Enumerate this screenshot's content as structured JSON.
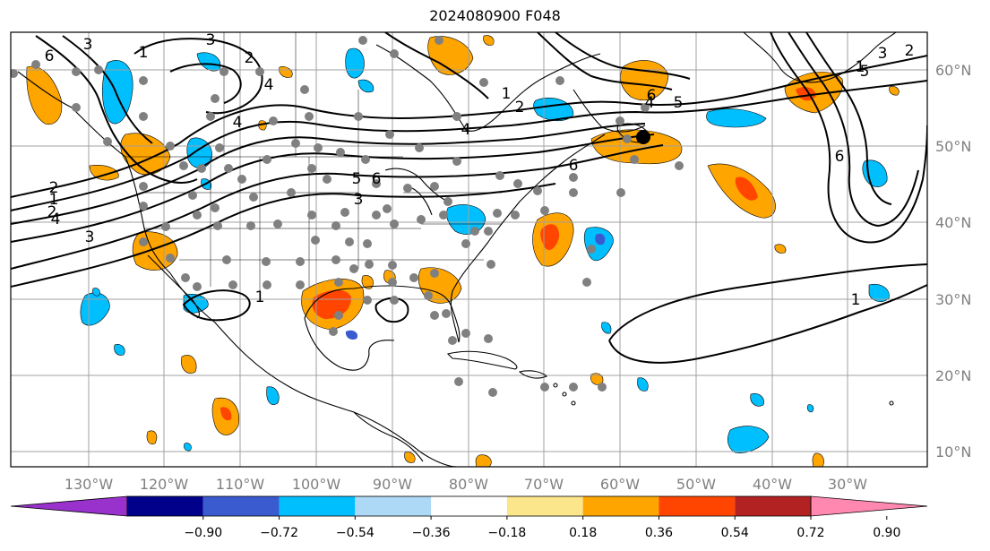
{
  "title": "2024080900 F048",
  "map": {
    "lon_labels": [
      "130°W",
      "120°W",
      "110°W",
      "100°W",
      "90°W",
      "80°W",
      "70°W",
      "60°W",
      "50°W",
      "40°W",
      "30°W"
    ],
    "lat_labels": [
      "60°N",
      "50°N",
      "40°N",
      "30°N",
      "20°N",
      "10°N"
    ],
    "contour_labels": [
      "6",
      "3",
      "1",
      "2",
      "4",
      "5",
      "6",
      "1",
      "2",
      "4",
      "2",
      "3",
      "1",
      "2",
      "4",
      "1",
      "3",
      "5",
      "6",
      "4",
      "5",
      "6",
      "3",
      "1",
      "1",
      "2",
      "3",
      "4",
      "6"
    ]
  },
  "colorbar": {
    "ticks": [
      "−0.90",
      "−0.72",
      "−0.54",
      "−0.36",
      "−0.18",
      "0.18",
      "0.36",
      "0.54",
      "0.72",
      "0.90"
    ],
    "colors": [
      "#9932cc",
      "#00008b",
      "#3a5bd0",
      "#00bfff",
      "#add8f6",
      "#ffffff",
      "#fce68c",
      "#ffa500",
      "#ff4500",
      "#b22222",
      "#ff88b0"
    ]
  }
}
